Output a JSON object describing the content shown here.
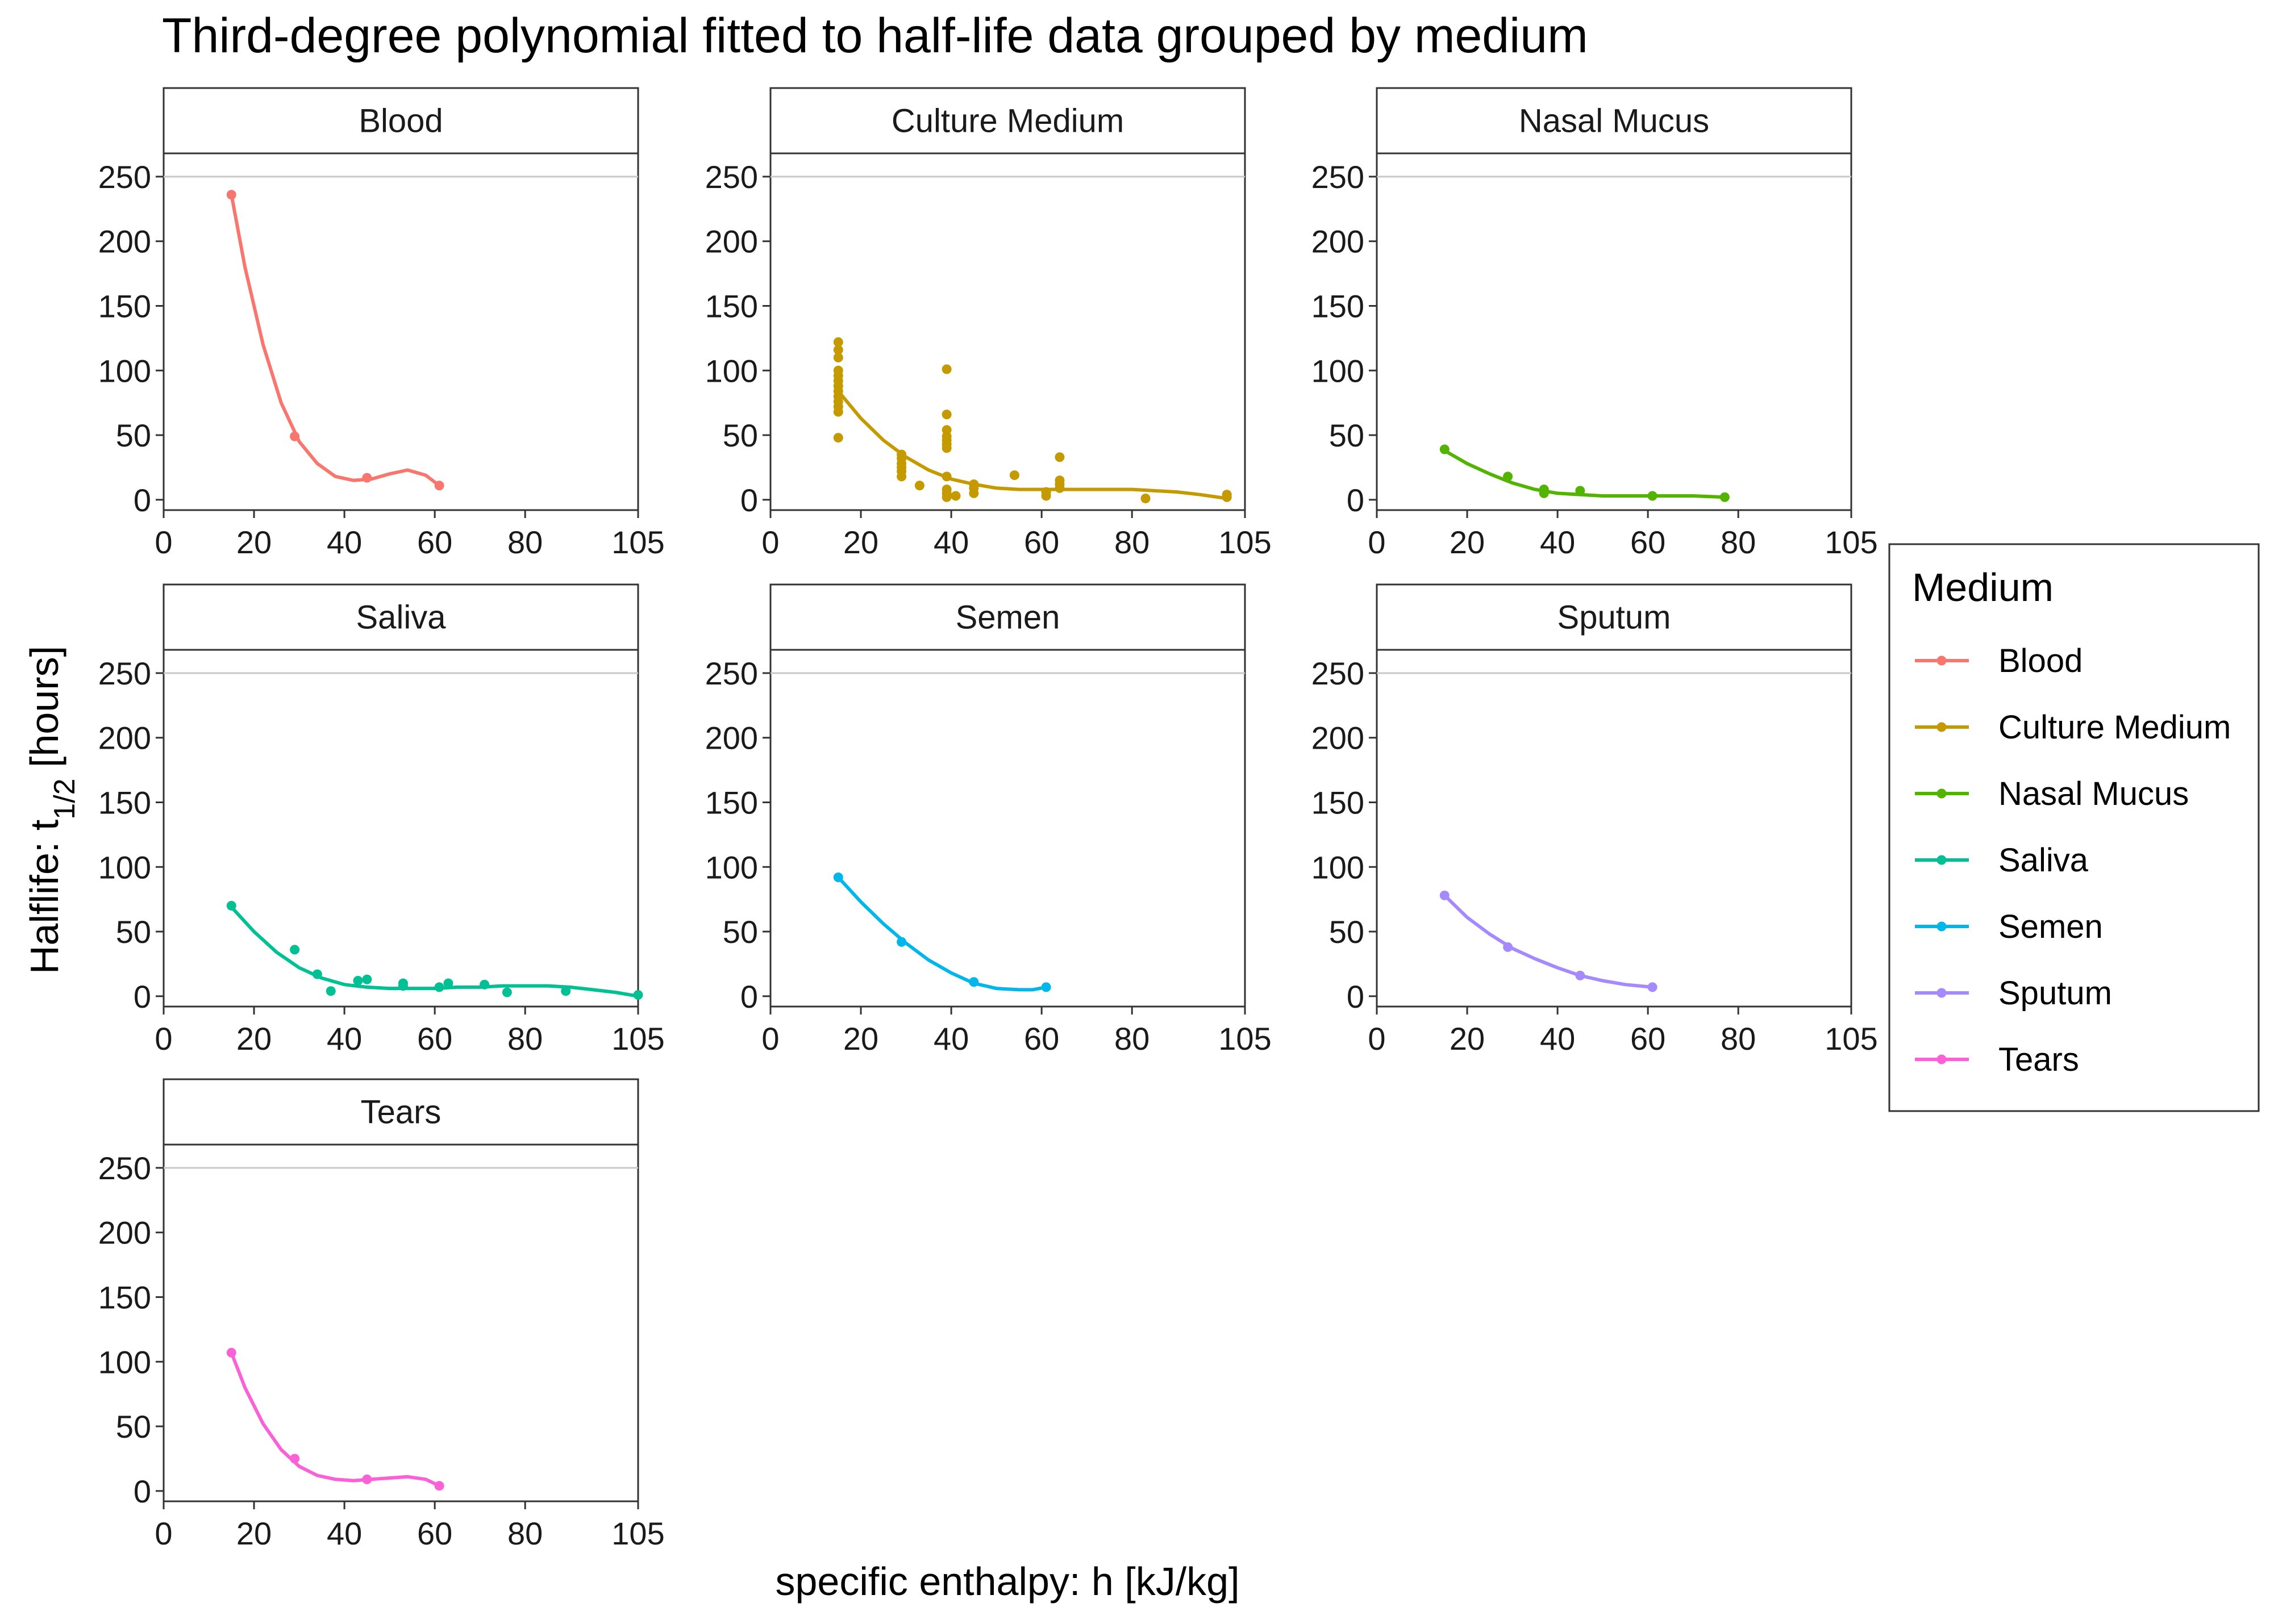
{
  "chart_data": {
    "type": "scatter",
    "title": "Third-degree polynomial fitted to half-life data grouped by medium",
    "xlabel": "specific enthalpy: h [kJ/kg]",
    "ylabel_main": "Halflife:  t",
    "ylabel_sub": "1/2",
    "ylabel_unit": " [hours]",
    "xlim": [
      0,
      105
    ],
    "ylim": [
      -8,
      268
    ],
    "x_ticks": [
      0,
      20,
      40,
      60,
      80,
      105
    ],
    "y_ticks": [
      0,
      50,
      100,
      150,
      200,
      250
    ],
    "legend": {
      "title": "Medium",
      "position": "right"
    },
    "panels": [
      {
        "name": "Blood",
        "color": "#F8766D",
        "points": [
          [
            15,
            236
          ],
          [
            29,
            49
          ],
          [
            45,
            17
          ],
          [
            61,
            11
          ]
        ],
        "fit": [
          [
            15,
            236
          ],
          [
            18,
            180
          ],
          [
            22,
            120
          ],
          [
            26,
            75
          ],
          [
            30,
            45
          ],
          [
            34,
            28
          ],
          [
            38,
            18
          ],
          [
            42,
            15
          ],
          [
            46,
            16
          ],
          [
            50,
            20
          ],
          [
            54,
            23
          ],
          [
            58,
            19
          ],
          [
            61,
            11
          ]
        ]
      },
      {
        "name": "Culture Medium",
        "color": "#C49A00",
        "points": [
          [
            15,
            48
          ],
          [
            15,
            68
          ],
          [
            15,
            72
          ],
          [
            15,
            76
          ],
          [
            15,
            80
          ],
          [
            15,
            84
          ],
          [
            15,
            88
          ],
          [
            15,
            92
          ],
          [
            15,
            96
          ],
          [
            15,
            100
          ],
          [
            15,
            110
          ],
          [
            15,
            116
          ],
          [
            15,
            122
          ],
          [
            29,
            18
          ],
          [
            29,
            22
          ],
          [
            29,
            25
          ],
          [
            29,
            28
          ],
          [
            29,
            32
          ],
          [
            29,
            35
          ],
          [
            33,
            11
          ],
          [
            39,
            2
          ],
          [
            39,
            5
          ],
          [
            39,
            8
          ],
          [
            39,
            18
          ],
          [
            39,
            40
          ],
          [
            39,
            43
          ],
          [
            39,
            46
          ],
          [
            39,
            49
          ],
          [
            39,
            54
          ],
          [
            39,
            66
          ],
          [
            39,
            101
          ],
          [
            41,
            3
          ],
          [
            45,
            5
          ],
          [
            45,
            9
          ],
          [
            45,
            12
          ],
          [
            54,
            19
          ],
          [
            61,
            3
          ],
          [
            61,
            6
          ],
          [
            64,
            9
          ],
          [
            64,
            12
          ],
          [
            64,
            15
          ],
          [
            64,
            33
          ],
          [
            83,
            1
          ],
          [
            101,
            2
          ],
          [
            101,
            4
          ]
        ],
        "fit": [
          [
            15,
            84
          ],
          [
            20,
            63
          ],
          [
            25,
            46
          ],
          [
            30,
            33
          ],
          [
            35,
            23
          ],
          [
            40,
            16
          ],
          [
            45,
            12
          ],
          [
            50,
            9
          ],
          [
            55,
            8
          ],
          [
            60,
            8
          ],
          [
            65,
            8
          ],
          [
            70,
            8
          ],
          [
            75,
            8
          ],
          [
            80,
            8
          ],
          [
            85,
            7
          ],
          [
            90,
            6
          ],
          [
            95,
            4
          ],
          [
            101,
            1
          ]
        ]
      },
      {
        "name": "Nasal Mucus",
        "color": "#53B400",
        "points": [
          [
            15,
            39
          ],
          [
            29,
            18
          ],
          [
            37,
            5
          ],
          [
            37,
            8
          ],
          [
            45,
            7
          ],
          [
            61,
            3
          ],
          [
            77,
            2
          ]
        ],
        "fit": [
          [
            15,
            38
          ],
          [
            20,
            28
          ],
          [
            25,
            20
          ],
          [
            30,
            13
          ],
          [
            35,
            8
          ],
          [
            40,
            5
          ],
          [
            45,
            4
          ],
          [
            50,
            3
          ],
          [
            55,
            3
          ],
          [
            60,
            3
          ],
          [
            65,
            3
          ],
          [
            70,
            3
          ],
          [
            77,
            2
          ]
        ]
      },
      {
        "name": "Saliva",
        "color": "#00C094",
        "points": [
          [
            15,
            70
          ],
          [
            29,
            36
          ],
          [
            34,
            17
          ],
          [
            37,
            4
          ],
          [
            43,
            12
          ],
          [
            45,
            13
          ],
          [
            53,
            10
          ],
          [
            53,
            8
          ],
          [
            61,
            7
          ],
          [
            63,
            10
          ],
          [
            71,
            9
          ],
          [
            76,
            3
          ],
          [
            89,
            4
          ],
          [
            105,
            1
          ]
        ],
        "fit": [
          [
            15,
            69
          ],
          [
            20,
            50
          ],
          [
            25,
            34
          ],
          [
            30,
            22
          ],
          [
            35,
            14
          ],
          [
            40,
            9
          ],
          [
            45,
            7
          ],
          [
            50,
            6
          ],
          [
            55,
            6
          ],
          [
            60,
            6
          ],
          [
            65,
            7
          ],
          [
            70,
            7
          ],
          [
            75,
            8
          ],
          [
            80,
            8
          ],
          [
            85,
            8
          ],
          [
            90,
            7
          ],
          [
            95,
            5
          ],
          [
            100,
            3
          ],
          [
            105,
            0
          ]
        ]
      },
      {
        "name": "Semen",
        "color": "#00B6EB",
        "points": [
          [
            15,
            92
          ],
          [
            29,
            42
          ],
          [
            45,
            11
          ],
          [
            61,
            7
          ]
        ],
        "fit": [
          [
            15,
            92
          ],
          [
            20,
            73
          ],
          [
            25,
            56
          ],
          [
            30,
            41
          ],
          [
            35,
            28
          ],
          [
            40,
            18
          ],
          [
            45,
            10
          ],
          [
            50,
            6
          ],
          [
            55,
            5
          ],
          [
            58,
            5
          ],
          [
            61,
            7
          ]
        ]
      },
      {
        "name": "Sputum",
        "color": "#A58AFF",
        "points": [
          [
            15,
            78
          ],
          [
            29,
            38
          ],
          [
            45,
            16
          ],
          [
            61,
            7
          ]
        ],
        "fit": [
          [
            15,
            78
          ],
          [
            20,
            61
          ],
          [
            25,
            48
          ],
          [
            30,
            37
          ],
          [
            35,
            29
          ],
          [
            40,
            22
          ],
          [
            45,
            16
          ],
          [
            50,
            12
          ],
          [
            55,
            9
          ],
          [
            61,
            7
          ]
        ]
      },
      {
        "name": "Tears",
        "color": "#FB61D7",
        "points": [
          [
            15,
            107
          ],
          [
            29,
            25
          ],
          [
            45,
            9
          ],
          [
            61,
            4
          ]
        ],
        "fit": [
          [
            15,
            107
          ],
          [
            18,
            80
          ],
          [
            22,
            52
          ],
          [
            26,
            32
          ],
          [
            30,
            19
          ],
          [
            34,
            12
          ],
          [
            38,
            9
          ],
          [
            42,
            8
          ],
          [
            46,
            9
          ],
          [
            50,
            10
          ],
          [
            54,
            11
          ],
          [
            58,
            9
          ],
          [
            61,
            4
          ]
        ]
      }
    ]
  }
}
